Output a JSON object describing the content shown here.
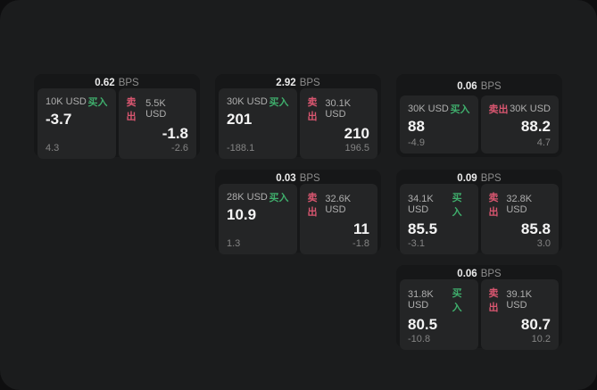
{
  "colors": {
    "outer_bg": "#0e0e0f",
    "surface_bg": "#1b1c1d",
    "card_bg": "#161718",
    "panel_bg": "#242526",
    "buy": "#3fae6c",
    "sell": "#d95670"
  },
  "labels": {
    "bps_unit": "BPS",
    "buy": "买入",
    "sell": "卖出"
  },
  "cards": [
    {
      "bps": "0.62",
      "buy": {
        "amount": "10K USD",
        "price": "-3.7",
        "delta": "4.3"
      },
      "sell": {
        "amount": "5.5K USD",
        "price": "-1.8",
        "delta": "-2.6"
      }
    },
    {
      "bps": "2.92",
      "buy": {
        "amount": "30K USD",
        "price": "201",
        "delta": "-188.1"
      },
      "sell": {
        "amount": "30.1K USD",
        "price": "210",
        "delta": "196.5"
      }
    },
    {
      "bps": "0.06",
      "buy": {
        "amount": "30K USD",
        "price": "88",
        "delta": "-4.9"
      },
      "sell": {
        "amount": "30K USD",
        "price": "88.2",
        "delta": "4.7"
      }
    },
    {
      "bps": "0.03",
      "buy": {
        "amount": "28K USD",
        "price": "10.9",
        "delta": "1.3"
      },
      "sell": {
        "amount": "32.6K USD",
        "price": "11",
        "delta": "-1.8"
      }
    },
    {
      "bps": "0.09",
      "buy": {
        "amount": "34.1K USD",
        "price": "85.5",
        "delta": "-3.1"
      },
      "sell": {
        "amount": "32.8K USD",
        "price": "85.8",
        "delta": "3.0"
      }
    },
    {
      "bps": "0.06",
      "buy": {
        "amount": "31.8K USD",
        "price": "80.5",
        "delta": "-10.8"
      },
      "sell": {
        "amount": "39.1K USD",
        "price": "80.7",
        "delta": "10.2"
      }
    }
  ]
}
